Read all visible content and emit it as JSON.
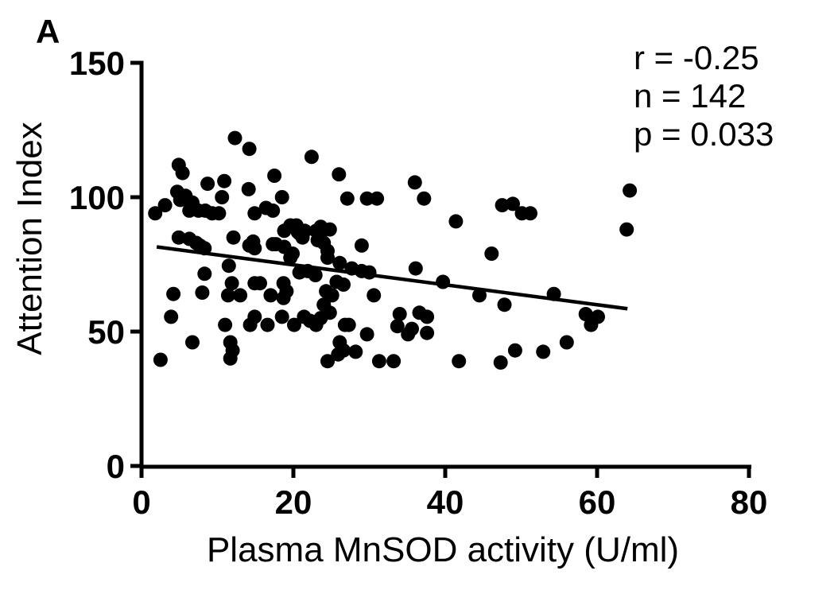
{
  "panel_label": "A",
  "colors": {
    "foreground": "#000000",
    "background": "#ffffff"
  },
  "chart_data": {
    "type": "scatter",
    "title": "",
    "xlabel": "Plasma MnSOD activity (U/ml)",
    "ylabel": "Attention Index",
    "xlim": [
      0,
      80
    ],
    "ylim": [
      0,
      150
    ],
    "xticks": [
      0,
      20,
      40,
      60,
      80
    ],
    "yticks": [
      0,
      50,
      100,
      150
    ],
    "grid": false,
    "legend": "none",
    "marker": {
      "shape": "circle",
      "color": "#000000"
    },
    "stats": {
      "r": -0.25,
      "n": 142,
      "p": 0.033
    },
    "annotation": {
      "position": "top-right",
      "lines": [
        "r = -0.25",
        "n = 142",
        "p = 0.033"
      ]
    },
    "regression_line": {
      "x1": 2.0,
      "y1": 81.5,
      "x2": 64.0,
      "y2": 58.5
    },
    "points": [
      [
        12.3,
        122
      ],
      [
        14.2,
        118
      ],
      [
        22.4,
        115
      ],
      [
        4.9,
        112
      ],
      [
        5.4,
        109
      ],
      [
        17.5,
        108
      ],
      [
        8.7,
        105
      ],
      [
        10.9,
        106
      ],
      [
        4.7,
        102
      ],
      [
        14.1,
        103
      ],
      [
        10.6,
        100
      ],
      [
        5.1,
        99
      ],
      [
        5.8,
        100.5
      ],
      [
        18.5,
        100
      ],
      [
        3.1,
        97
      ],
      [
        1.8,
        94
      ],
      [
        6.7,
        98
      ],
      [
        6.3,
        95
      ],
      [
        7.5,
        95
      ],
      [
        8.4,
        95
      ],
      [
        9.3,
        94
      ],
      [
        10.2,
        94
      ],
      [
        14.9,
        94
      ],
      [
        16.4,
        96
      ],
      [
        17.3,
        95
      ],
      [
        20.6,
        87
      ],
      [
        21.5,
        87.5
      ],
      [
        23,
        87.5
      ],
      [
        4.9,
        85
      ],
      [
        6.3,
        84.5
      ],
      [
        7.2,
        83
      ],
      [
        7.7,
        82
      ],
      [
        8.3,
        81
      ],
      [
        12.1,
        85
      ],
      [
        14.7,
        83.5
      ],
      [
        14.2,
        82
      ],
      [
        14.9,
        81
      ],
      [
        17.3,
        82.5
      ],
      [
        18.8,
        87.5
      ],
      [
        19.6,
        89.5
      ],
      [
        20.4,
        89.5
      ],
      [
        20.8,
        86.5
      ],
      [
        21.2,
        85
      ],
      [
        23.6,
        89
      ],
      [
        24.8,
        88
      ],
      [
        23.5,
        85
      ],
      [
        24,
        83
      ],
      [
        24.5,
        80
      ],
      [
        24.5,
        77.5
      ],
      [
        17.7,
        82.5
      ],
      [
        18.8,
        81.5
      ],
      [
        19.9,
        79
      ],
      [
        19.6,
        77.5
      ],
      [
        26.1,
        75.5
      ],
      [
        27.7,
        73.5
      ],
      [
        29,
        82
      ],
      [
        26,
        108.5
      ],
      [
        36,
        105.5
      ],
      [
        27.1,
        99.5
      ],
      [
        29.7,
        99.5
      ],
      [
        31,
        99.5
      ],
      [
        37.2,
        99.5
      ],
      [
        41.4,
        91
      ],
      [
        46.1,
        79
      ],
      [
        36.1,
        73.5
      ],
      [
        47.5,
        97
      ],
      [
        48.9,
        97.5
      ],
      [
        50.1,
        94
      ],
      [
        51.2,
        94
      ],
      [
        64.3,
        102.5
      ],
      [
        63.9,
        88
      ],
      [
        29,
        72.5
      ],
      [
        30,
        72
      ],
      [
        39.7,
        68.5
      ],
      [
        25.7,
        68.5
      ],
      [
        26.6,
        67.5
      ],
      [
        24.3,
        65
      ],
      [
        25.1,
        63.5
      ],
      [
        24,
        60
      ],
      [
        24.8,
        57
      ],
      [
        23.6,
        55
      ],
      [
        30.6,
        63.5
      ],
      [
        44.5,
        63.5
      ],
      [
        47.8,
        60
      ],
      [
        34,
        56.5
      ],
      [
        33.7,
        52
      ],
      [
        36.6,
        57
      ],
      [
        37.6,
        55.5
      ],
      [
        35.6,
        51
      ],
      [
        35.1,
        49
      ],
      [
        37.6,
        49.5
      ],
      [
        29.7,
        49
      ],
      [
        26.8,
        52.5
      ],
      [
        27.3,
        52.5
      ],
      [
        26.1,
        46
      ],
      [
        26.6,
        43
      ],
      [
        25.9,
        41.5
      ],
      [
        28.2,
        42.5
      ],
      [
        24.5,
        39
      ],
      [
        31.3,
        39
      ],
      [
        33.2,
        39
      ],
      [
        41.8,
        39
      ],
      [
        47.3,
        38.5
      ],
      [
        54.3,
        64
      ],
      [
        58.5,
        56.5
      ],
      [
        60.1,
        55.5
      ],
      [
        59.2,
        52.5
      ],
      [
        56,
        46
      ],
      [
        49.2,
        43
      ],
      [
        52.9,
        42.5
      ],
      [
        8.3,
        71.5
      ],
      [
        11.5,
        74.5
      ],
      [
        4.2,
        64
      ],
      [
        8,
        64.5
      ],
      [
        11.9,
        68
      ],
      [
        11.4,
        63.5
      ],
      [
        13,
        63.5
      ],
      [
        14.9,
        68
      ],
      [
        15.6,
        68
      ],
      [
        17,
        63.5
      ],
      [
        18.7,
        68
      ],
      [
        19.1,
        65
      ],
      [
        18.7,
        62.5
      ],
      [
        20.8,
        72
      ],
      [
        21.9,
        72.5
      ],
      [
        22.9,
        71
      ],
      [
        3.9,
        55.5
      ],
      [
        11,
        52.5
      ],
      [
        14.3,
        52.5
      ],
      [
        14.9,
        55.5
      ],
      [
        16.6,
        52.5
      ],
      [
        18.5,
        55.5
      ],
      [
        20.1,
        52.5
      ],
      [
        21.4,
        55.5
      ],
      [
        22.2,
        54
      ],
      [
        23,
        52.5
      ],
      [
        6.7,
        46
      ],
      [
        11.7,
        46
      ],
      [
        12,
        43
      ],
      [
        11.7,
        40
      ],
      [
        2.5,
        39.5
      ],
      [
        23.2,
        84
      ]
    ]
  }
}
